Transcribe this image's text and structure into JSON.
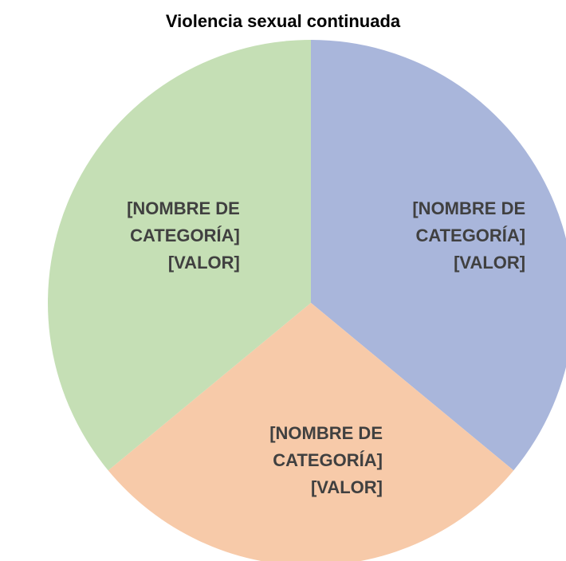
{
  "chart_data": {
    "type": "pie",
    "title": "Violencia sexual continuada",
    "categories": [
      "[NOMBRE DE CATEGORÍA]",
      "[NOMBRE DE CATEGORÍA]",
      "[NOMBRE DE CATEGORÍA]"
    ],
    "values": [
      36,
      28,
      36
    ],
    "value_labels": [
      "[VALOR]",
      "[VALOR]",
      "[VALOR]"
    ],
    "colors": [
      "#a9b6db",
      "#f7caa9",
      "#c5dfb5"
    ]
  }
}
